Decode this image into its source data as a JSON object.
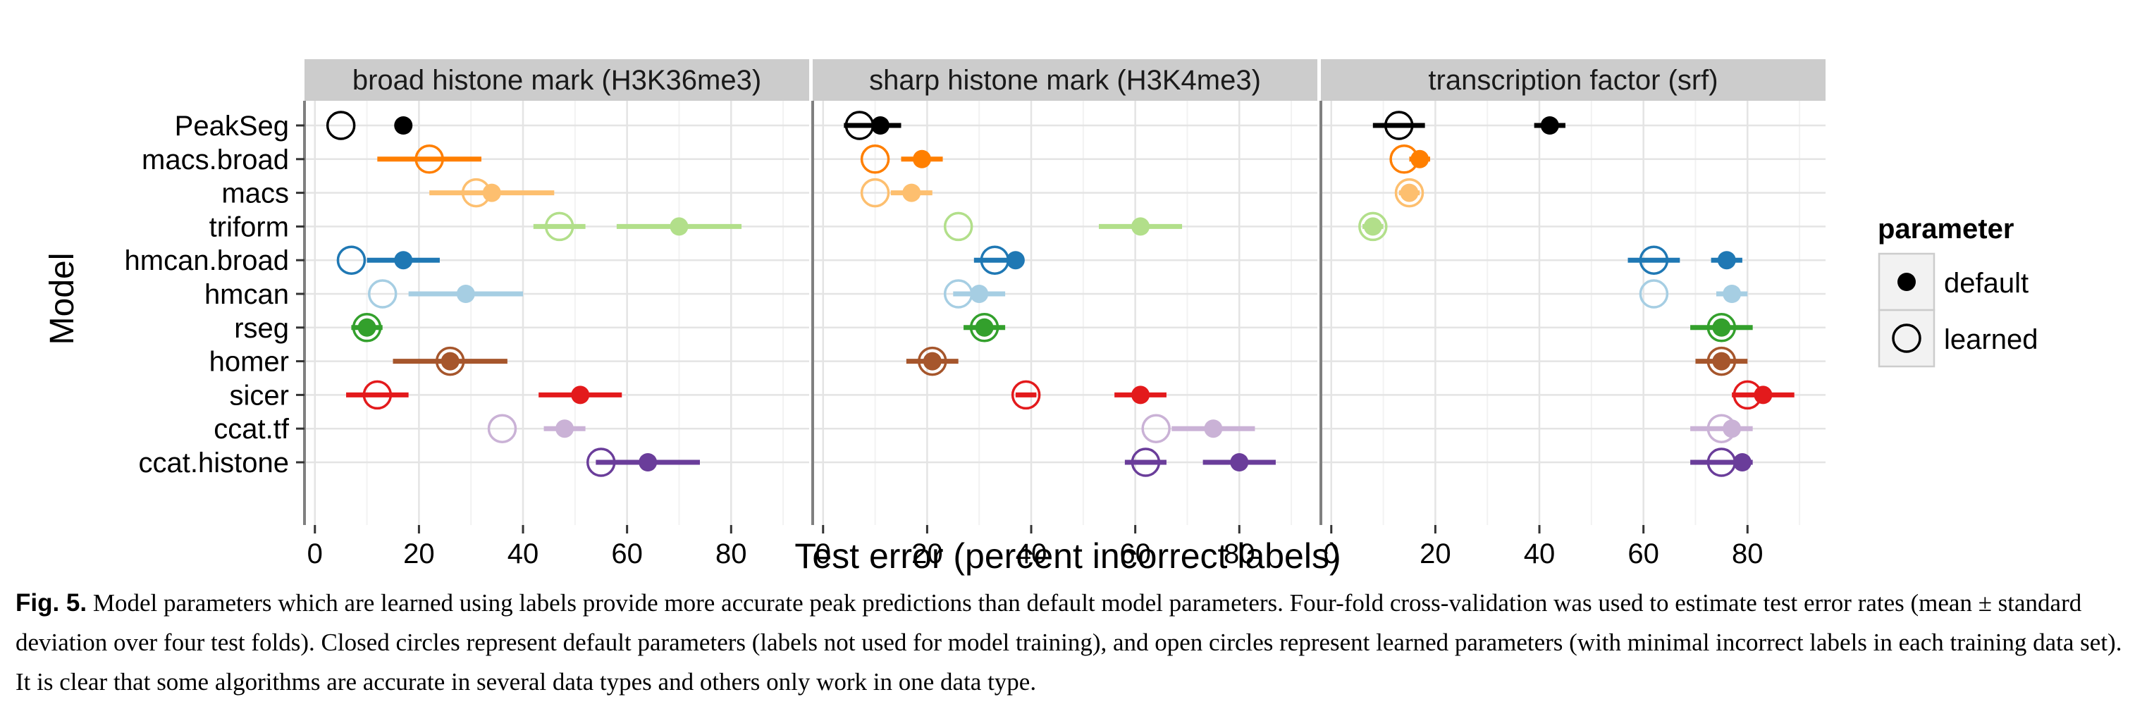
{
  "figure": {
    "caption_label": "Fig. 5.",
    "caption_text": "Model parameters which are learned using labels provide more accurate peak predictions than default model parameters. Four-fold cross-validation was used to estimate test error rates (mean ± standard deviation over four test folds). Closed circles represent default parameters (labels not used for model training), and open circles represent learned parameters (with minimal incorrect labels in each training data set). It is clear that some algorithms are accurate in several data types and others only work in one data type."
  },
  "chart_data": {
    "type": "scatter",
    "xlabel": "Test error (percent incorrect labels)",
    "ylabel": "Model",
    "xlim": [
      -2,
      95
    ],
    "x_ticks": [
      0,
      20,
      40,
      60,
      80
    ],
    "grid": true,
    "models": [
      "PeakSeg",
      "macs.broad",
      "macs",
      "triform",
      "hmcan.broad",
      "hmcan",
      "rseg",
      "homer",
      "sicer",
      "ccat.tf",
      "ccat.histone"
    ],
    "colors": {
      "PeakSeg": "#000000",
      "macs.broad": "#ff7f00",
      "macs": "#fdbf6f",
      "triform": "#b2df8a",
      "hmcan.broad": "#1f78b4",
      "hmcan": "#a6cee3",
      "rseg": "#33a02c",
      "homer": "#a6562c",
      "sicer": "#e31a1c",
      "ccat.tf": "#cab2d6",
      "ccat.histone": "#6a3d9a"
    },
    "legend": {
      "title": "parameter",
      "position": "right",
      "entries": [
        {
          "label": "default",
          "marker": "filled"
        },
        {
          "label": "learned",
          "marker": "open"
        }
      ]
    },
    "panels": [
      {
        "title": "broad histone mark (H3K36me3)",
        "points": [
          {
            "model": "PeakSeg",
            "parameter": "learned",
            "mean": 5,
            "sd": 0
          },
          {
            "model": "PeakSeg",
            "parameter": "default",
            "mean": 17,
            "sd": 0
          },
          {
            "model": "macs.broad",
            "parameter": "learned",
            "mean": 22,
            "sd": 10
          },
          {
            "model": "macs",
            "parameter": "learned",
            "mean": 31,
            "sd": 0
          },
          {
            "model": "macs",
            "parameter": "default",
            "mean": 34,
            "sd": 12
          },
          {
            "model": "triform",
            "parameter": "learned",
            "mean": 47,
            "sd": 5
          },
          {
            "model": "triform",
            "parameter": "default",
            "mean": 70,
            "sd": 12
          },
          {
            "model": "hmcan.broad",
            "parameter": "learned",
            "mean": 7,
            "sd": 0
          },
          {
            "model": "hmcan.broad",
            "parameter": "default",
            "mean": 17,
            "sd": 7
          },
          {
            "model": "hmcan",
            "parameter": "learned",
            "mean": 13,
            "sd": 0
          },
          {
            "model": "hmcan",
            "parameter": "default",
            "mean": 29,
            "sd": 11
          },
          {
            "model": "rseg",
            "parameter": "learned",
            "mean": 10,
            "sd": 3
          },
          {
            "model": "rseg",
            "parameter": "default",
            "mean": 10,
            "sd": 0
          },
          {
            "model": "homer",
            "parameter": "learned",
            "mean": 26,
            "sd": 11
          },
          {
            "model": "homer",
            "parameter": "default",
            "mean": 26,
            "sd": 0
          },
          {
            "model": "sicer",
            "parameter": "learned",
            "mean": 12,
            "sd": 6
          },
          {
            "model": "sicer",
            "parameter": "default",
            "mean": 51,
            "sd": 8
          },
          {
            "model": "ccat.tf",
            "parameter": "learned",
            "mean": 36,
            "sd": 0
          },
          {
            "model": "ccat.tf",
            "parameter": "default",
            "mean": 48,
            "sd": 4
          },
          {
            "model": "ccat.histone",
            "parameter": "learned",
            "mean": 55,
            "sd": 0
          },
          {
            "model": "ccat.histone",
            "parameter": "default",
            "mean": 64,
            "sd": 10
          }
        ]
      },
      {
        "title": "sharp histone mark (H3K4me3)",
        "points": [
          {
            "model": "PeakSeg",
            "parameter": "learned",
            "mean": 7,
            "sd": 3
          },
          {
            "model": "PeakSeg",
            "parameter": "default",
            "mean": 11,
            "sd": 4
          },
          {
            "model": "macs.broad",
            "parameter": "learned",
            "mean": 10,
            "sd": 0
          },
          {
            "model": "macs.broad",
            "parameter": "default",
            "mean": 19,
            "sd": 4
          },
          {
            "model": "macs",
            "parameter": "learned",
            "mean": 10,
            "sd": 0
          },
          {
            "model": "macs",
            "parameter": "default",
            "mean": 17,
            "sd": 4
          },
          {
            "model": "triform",
            "parameter": "learned",
            "mean": 26,
            "sd": 0
          },
          {
            "model": "triform",
            "parameter": "default",
            "mean": 61,
            "sd": 8
          },
          {
            "model": "hmcan.broad",
            "parameter": "learned",
            "mean": 33,
            "sd": 4
          },
          {
            "model": "hmcan.broad",
            "parameter": "default",
            "mean": 37,
            "sd": 0
          },
          {
            "model": "hmcan",
            "parameter": "learned",
            "mean": 26,
            "sd": 0
          },
          {
            "model": "hmcan",
            "parameter": "default",
            "mean": 30,
            "sd": 5
          },
          {
            "model": "rseg",
            "parameter": "learned",
            "mean": 31,
            "sd": 4
          },
          {
            "model": "rseg",
            "parameter": "default",
            "mean": 31,
            "sd": 0
          },
          {
            "model": "homer",
            "parameter": "learned",
            "mean": 21,
            "sd": 5
          },
          {
            "model": "homer",
            "parameter": "default",
            "mean": 21,
            "sd": 0
          },
          {
            "model": "sicer",
            "parameter": "learned",
            "mean": 39,
            "sd": 2
          },
          {
            "model": "sicer",
            "parameter": "default",
            "mean": 61,
            "sd": 5
          },
          {
            "model": "ccat.tf",
            "parameter": "learned",
            "mean": 64,
            "sd": 0
          },
          {
            "model": "ccat.tf",
            "parameter": "default",
            "mean": 75,
            "sd": 8
          },
          {
            "model": "ccat.histone",
            "parameter": "learned",
            "mean": 62,
            "sd": 4
          },
          {
            "model": "ccat.histone",
            "parameter": "default",
            "mean": 80,
            "sd": 7
          }
        ]
      },
      {
        "title": "transcription factor (srf)",
        "points": [
          {
            "model": "PeakSeg",
            "parameter": "learned",
            "mean": 13,
            "sd": 5
          },
          {
            "model": "PeakSeg",
            "parameter": "default",
            "mean": 42,
            "sd": 3
          },
          {
            "model": "macs.broad",
            "parameter": "learned",
            "mean": 14,
            "sd": 0
          },
          {
            "model": "macs.broad",
            "parameter": "default",
            "mean": 17,
            "sd": 2
          },
          {
            "model": "macs",
            "parameter": "learned",
            "mean": 15,
            "sd": 2
          },
          {
            "model": "macs",
            "parameter": "default",
            "mean": 15,
            "sd": 0
          },
          {
            "model": "triform",
            "parameter": "learned",
            "mean": 8,
            "sd": 2
          },
          {
            "model": "triform",
            "parameter": "default",
            "mean": 8,
            "sd": 0
          },
          {
            "model": "hmcan.broad",
            "parameter": "learned",
            "mean": 62,
            "sd": 5
          },
          {
            "model": "hmcan.broad",
            "parameter": "default",
            "mean": 76,
            "sd": 3
          },
          {
            "model": "hmcan",
            "parameter": "learned",
            "mean": 62,
            "sd": 0
          },
          {
            "model": "hmcan",
            "parameter": "default",
            "mean": 77,
            "sd": 3
          },
          {
            "model": "rseg",
            "parameter": "learned",
            "mean": 75,
            "sd": 6
          },
          {
            "model": "rseg",
            "parameter": "default",
            "mean": 75,
            "sd": 0
          },
          {
            "model": "homer",
            "parameter": "learned",
            "mean": 75,
            "sd": 5
          },
          {
            "model": "homer",
            "parameter": "default",
            "mean": 75,
            "sd": 0
          },
          {
            "model": "sicer",
            "parameter": "learned",
            "mean": 80,
            "sd": 0
          },
          {
            "model": "sicer",
            "parameter": "default",
            "mean": 83,
            "sd": 6
          },
          {
            "model": "ccat.tf",
            "parameter": "learned",
            "mean": 75,
            "sd": 6
          },
          {
            "model": "ccat.tf",
            "parameter": "default",
            "mean": 77,
            "sd": 0
          },
          {
            "model": "ccat.histone",
            "parameter": "learned",
            "mean": 75,
            "sd": 6
          },
          {
            "model": "ccat.histone",
            "parameter": "default",
            "mean": 79,
            "sd": 0
          }
        ]
      }
    ]
  }
}
